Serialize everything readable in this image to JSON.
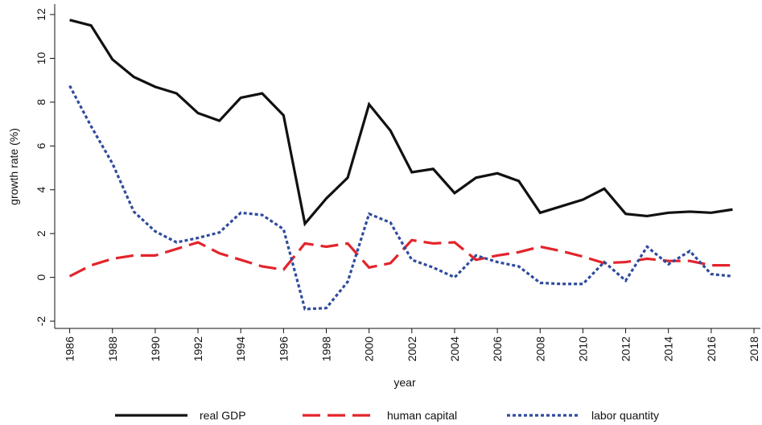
{
  "chart_data": {
    "type": "line",
    "x_label": "year",
    "y_label": "growth rate (%)",
    "x": [
      1986,
      1987,
      1988,
      1989,
      1990,
      1991,
      1992,
      1993,
      1994,
      1995,
      1996,
      1997,
      1998,
      1999,
      2000,
      2001,
      2002,
      2003,
      2004,
      2005,
      2006,
      2007,
      2008,
      2009,
      2010,
      2011,
      2012,
      2013,
      2014,
      2015,
      2016,
      2017
    ],
    "series": [
      {
        "name": "real GDP",
        "color": "#111111",
        "dash": "solid",
        "values": [
          11.75,
          11.5,
          9.95,
          9.15,
          8.7,
          8.4,
          7.5,
          7.15,
          8.2,
          8.4,
          7.4,
          2.45,
          3.6,
          4.55,
          7.9,
          6.7,
          4.8,
          4.95,
          3.85,
          4.55,
          4.75,
          4.4,
          2.95,
          3.25,
          3.55,
          4.05,
          2.9,
          2.8,
          2.95,
          3.0,
          2.95,
          3.1
        ]
      },
      {
        "name": "human capital",
        "color": "#e3242b",
        "dash": "dashed",
        "values": [
          0.05,
          0.55,
          0.85,
          1.0,
          1.0,
          1.3,
          1.6,
          1.1,
          0.8,
          0.5,
          0.35,
          1.55,
          1.4,
          1.55,
          0.45,
          0.65,
          1.7,
          1.55,
          1.6,
          0.8,
          1.0,
          1.15,
          1.4,
          1.2,
          0.95,
          0.65,
          0.7,
          0.85,
          0.75,
          0.75,
          0.55,
          0.55
        ]
      },
      {
        "name": "labor quantity",
        "color": "#2f4b9c",
        "dash": "dotted",
        "values": [
          8.75,
          6.9,
          5.2,
          3.0,
          2.1,
          1.6,
          1.8,
          2.05,
          2.95,
          2.85,
          2.2,
          -1.45,
          -1.4,
          -0.2,
          2.9,
          2.5,
          0.8,
          0.45,
          0.0,
          1.0,
          0.7,
          0.5,
          -0.25,
          -0.3,
          -0.3,
          0.7,
          -0.15,
          1.4,
          0.6,
          1.2,
          0.15,
          0.05
        ]
      }
    ],
    "xlim": [
      1985.3,
      2018.3
    ],
    "xticks": [
      1986,
      1988,
      1990,
      1992,
      1994,
      1996,
      1998,
      2000,
      2002,
      2004,
      2006,
      2008,
      2010,
      2012,
      2014,
      2016,
      2018
    ],
    "ylim": [
      -2.33,
      12.48
    ],
    "yticks": [
      -2,
      0,
      2,
      4,
      6,
      8,
      10,
      12
    ],
    "grid": false,
    "legend": "bottom"
  }
}
